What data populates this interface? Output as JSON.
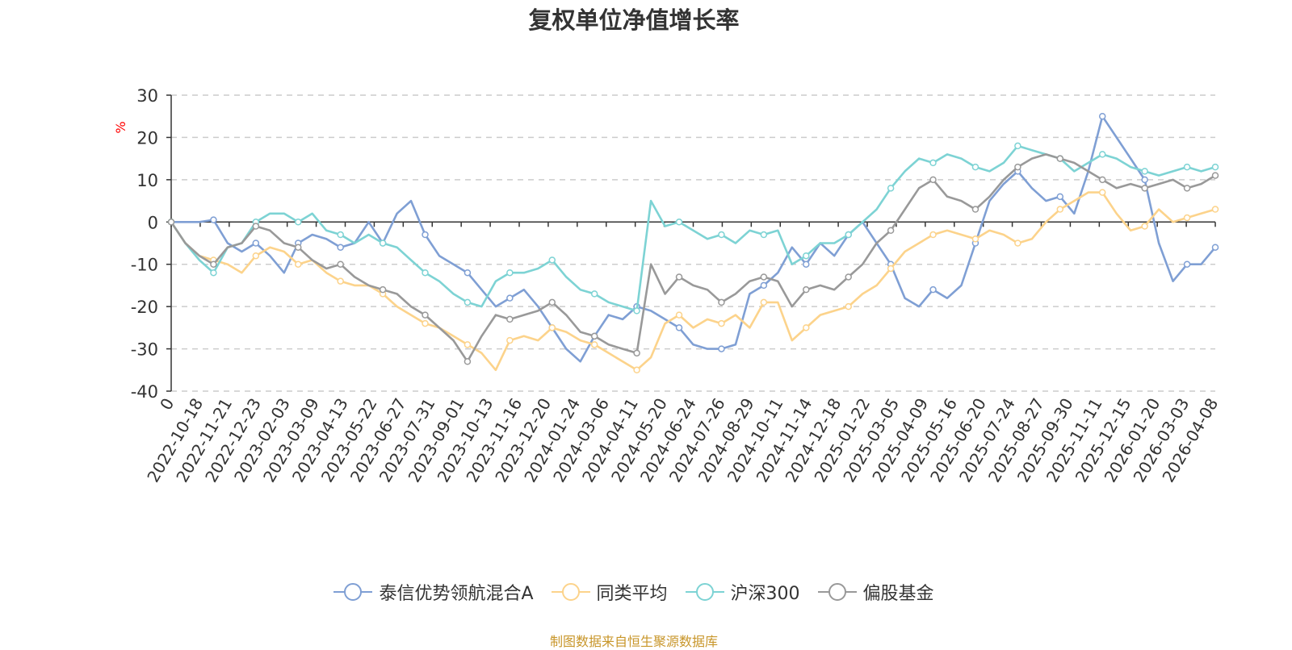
{
  "title": "复权单位净值增长率",
  "source_note": "制图数据来自恒生聚源数据库",
  "chart_data": {
    "type": "line",
    "title": "复权单位净值增长率",
    "ylabel": "%",
    "ylim": [
      -40,
      30
    ],
    "yticks": [
      30,
      20,
      10,
      0,
      -10,
      -20,
      -30,
      -40
    ],
    "grid": "horizontal-dashed",
    "legend_position": "bottom",
    "x_tick_labels": [
      "0",
      "2022-10-18",
      "2022-11-21",
      "2022-12-23",
      "2023-02-03",
      "2023-03-09",
      "2023-04-13",
      "2023-05-22",
      "2023-06-27",
      "2023-07-31",
      "2023-09-01",
      "2023-10-13",
      "2023-11-16",
      "2023-12-20",
      "2024-01-24",
      "2024-03-06",
      "2024-04-11",
      "2024-05-20",
      "2024-06-24",
      "2024-07-26",
      "2024-08-29",
      "2024-10-11",
      "2024-11-14",
      "2024-12-18",
      "2025-01-22",
      "2025-03-05",
      "2025-04-09",
      "2025-05-16",
      "2025-06-20",
      "2025-07-24",
      "2025-08-27",
      "2025-09-30",
      "2025-11-11",
      "2025-12-15",
      "2026-01-20",
      "2026-03-03",
      "2026-04-08"
    ],
    "series": [
      {
        "name": "泰信优势领航混合A",
        "color": "#7f9fd4",
        "values": [
          0,
          0,
          0,
          0.5,
          -5,
          -7,
          -5,
          -8,
          -12,
          -5,
          -3,
          -4,
          -6,
          -5,
          0,
          -5,
          2,
          5,
          -3,
          -8,
          -10,
          -12,
          -16,
          -20,
          -18,
          -16,
          -20,
          -25,
          -30,
          -33,
          -27,
          -22,
          -23,
          -20,
          -21,
          -23,
          -25,
          -29,
          -30,
          -30,
          -29,
          -17,
          -15,
          -12,
          -6,
          -10,
          -5,
          -8,
          -3,
          0,
          -5,
          -10,
          -18,
          -20,
          -16,
          -18,
          -15,
          -5,
          5,
          9,
          12,
          8,
          5,
          6,
          2,
          12,
          25,
          20,
          15,
          10,
          -5,
          -14,
          -10,
          -10,
          -6
        ]
      },
      {
        "name": "同类平均",
        "color": "#fcd38b",
        "values": [
          0,
          -5,
          -8,
          -9,
          -10,
          -12,
          -8,
          -6,
          -7,
          -10,
          -9,
          -12,
          -14,
          -15,
          -15,
          -17,
          -20,
          -22,
          -24,
          -25,
          -27,
          -29,
          -31,
          -35,
          -28,
          -27,
          -28,
          -25,
          -26,
          -28,
          -29,
          -31,
          -33,
          -35,
          -32,
          -24,
          -22,
          -25,
          -23,
          -24,
          -22,
          -25,
          -19,
          -19,
          -28,
          -25,
          -22,
          -21,
          -20,
          -17,
          -15,
          -11,
          -7,
          -5,
          -3,
          -2,
          -3,
          -4,
          -2,
          -3,
          -5,
          -4,
          0,
          3,
          5,
          7,
          7,
          2,
          -2,
          -1,
          3,
          0,
          1,
          2,
          3
        ]
      },
      {
        "name": "沪深300",
        "color": "#7dd3d4",
        "values": [
          0,
          -5,
          -9,
          -12,
          -6,
          -5,
          0,
          2,
          2,
          0,
          2,
          -2,
          -3,
          -5,
          -3,
          -5,
          -6,
          -9,
          -12,
          -14,
          -17,
          -19,
          -20,
          -14,
          -12,
          -12,
          -11,
          -9,
          -13,
          -16,
          -17,
          -19,
          -20,
          -21,
          5,
          -1,
          0,
          -2,
          -4,
          -3,
          -5,
          -2,
          -3,
          -2,
          -10,
          -8,
          -5,
          -5,
          -3,
          0,
          3,
          8,
          12,
          15,
          14,
          16,
          15,
          13,
          12,
          14,
          18,
          17,
          16,
          15,
          12,
          14,
          16,
          15,
          13,
          12,
          11,
          12,
          13,
          12,
          13
        ]
      },
      {
        "name": "偏股基金",
        "color": "#999999",
        "values": [
          0,
          -5,
          -8,
          -10,
          -6,
          -5,
          -1,
          -2,
          -5,
          -6,
          -9,
          -11,
          -10,
          -13,
          -15,
          -16,
          -17,
          -20,
          -22,
          -25,
          -28,
          -33,
          -27,
          -22,
          -23,
          -22,
          -21,
          -19,
          -22,
          -26,
          -27,
          -29,
          -30,
          -31,
          -10,
          -17,
          -13,
          -15,
          -16,
          -19,
          -17,
          -14,
          -13,
          -14,
          -20,
          -16,
          -15,
          -16,
          -13,
          -10,
          -5,
          -2,
          3,
          8,
          10,
          6,
          5,
          3,
          6,
          10,
          13,
          15,
          16,
          15,
          14,
          12,
          10,
          8,
          9,
          8,
          9,
          10,
          8,
          9,
          11
        ]
      }
    ]
  }
}
